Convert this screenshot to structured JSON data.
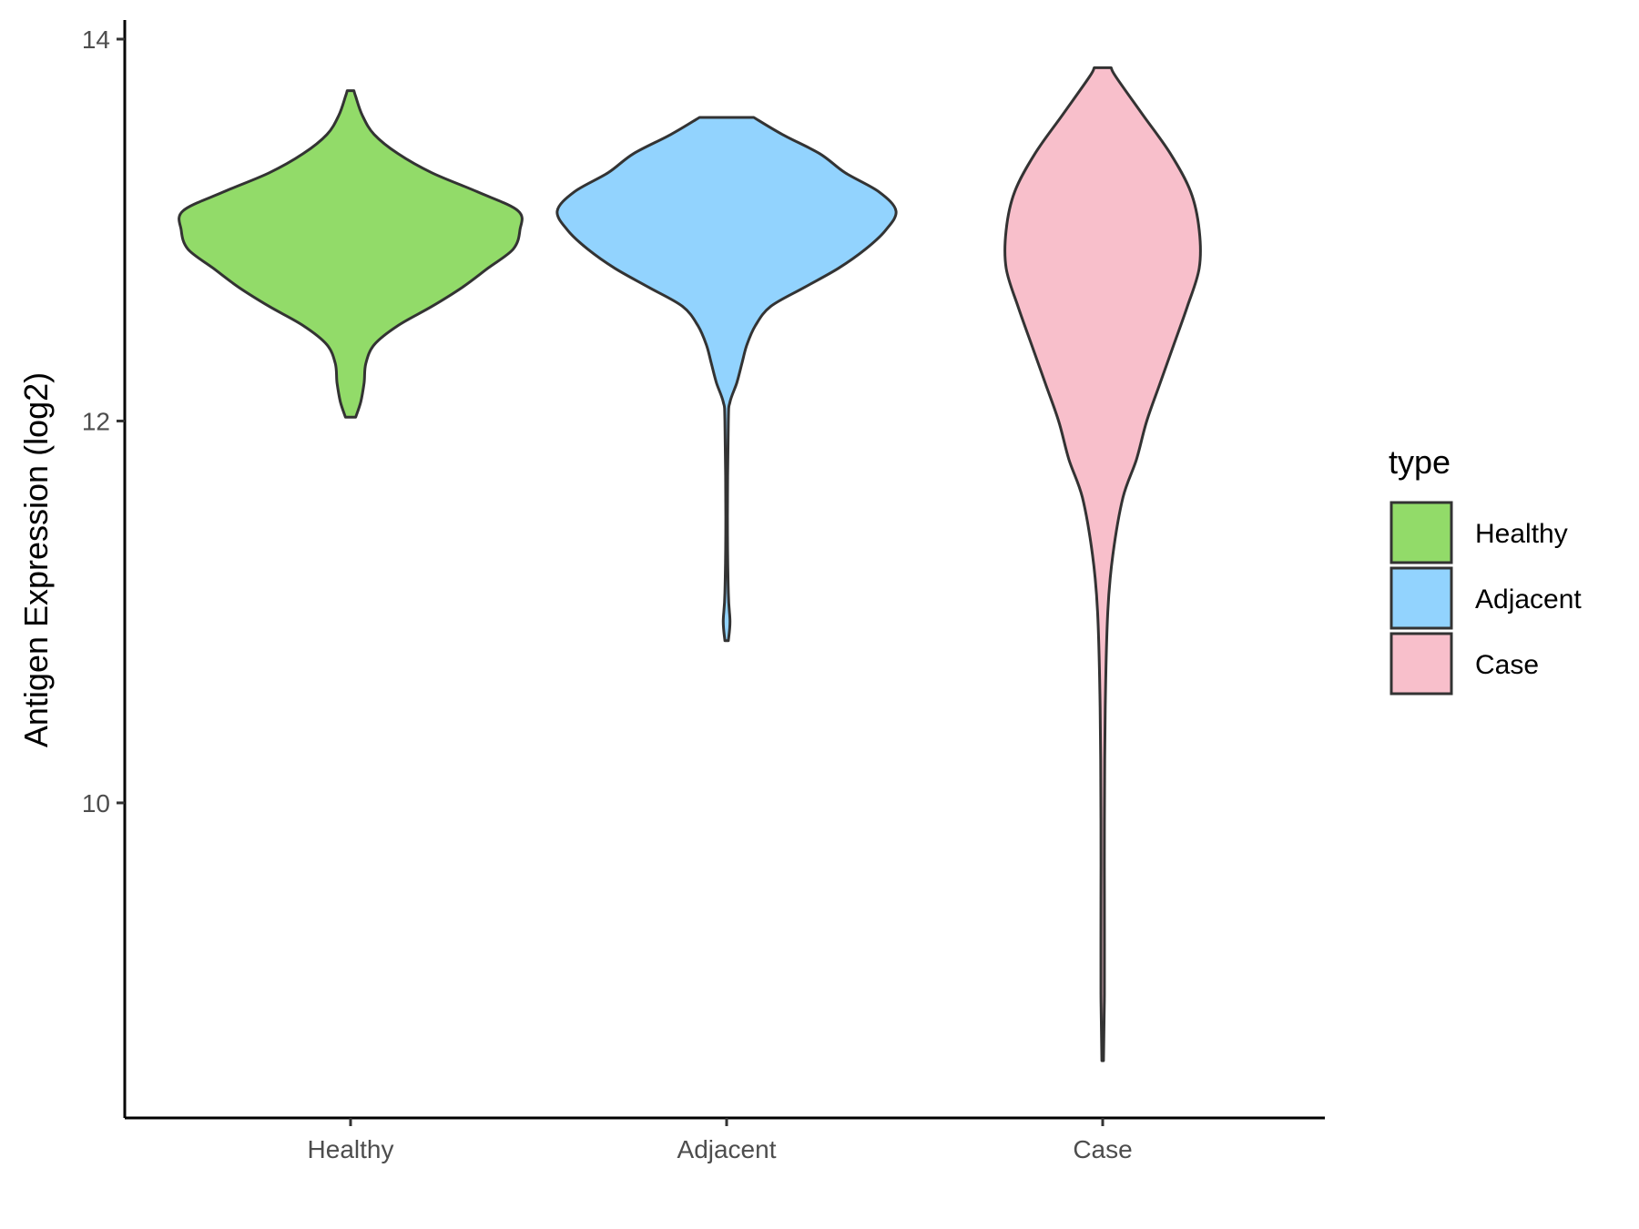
{
  "chart_data": {
    "type": "violin",
    "xlabel": "",
    "ylabel": "Antigen Expression (log2)",
    "ylim": [
      8.35,
      14.1
    ],
    "yticks": [
      10,
      12,
      14
    ],
    "categories": [
      "Healthy",
      "Adjacent",
      "Case"
    ],
    "legend": {
      "title": "type",
      "position": "right"
    },
    "grid": false,
    "series": [
      {
        "name": "Healthy",
        "color": "#92DB69",
        "min": 12.02,
        "max": 13.73,
        "profile": [
          [
            12.02,
            0.03
          ],
          [
            12.1,
            0.06
          ],
          [
            12.2,
            0.08
          ],
          [
            12.3,
            0.09
          ],
          [
            12.4,
            0.14
          ],
          [
            12.5,
            0.28
          ],
          [
            12.6,
            0.48
          ],
          [
            12.7,
            0.66
          ],
          [
            12.8,
            0.81
          ],
          [
            12.9,
            0.96
          ],
          [
            13.0,
            1.0
          ],
          [
            13.1,
            0.99
          ],
          [
            13.2,
            0.75
          ],
          [
            13.3,
            0.48
          ],
          [
            13.4,
            0.28
          ],
          [
            13.5,
            0.14
          ],
          [
            13.6,
            0.07
          ],
          [
            13.7,
            0.03
          ],
          [
            13.73,
            0.02
          ]
        ]
      },
      {
        "name": "Adjacent",
        "color": "#92D3FE",
        "min": 10.85,
        "max": 13.59,
        "profile": [
          [
            10.85,
            0.01
          ],
          [
            10.95,
            0.02
          ],
          [
            11.1,
            0.01
          ],
          [
            11.5,
            0.005
          ],
          [
            12.0,
            0.01
          ],
          [
            12.1,
            0.02
          ],
          [
            12.2,
            0.06
          ],
          [
            12.3,
            0.09
          ],
          [
            12.4,
            0.12
          ],
          [
            12.5,
            0.17
          ],
          [
            12.6,
            0.26
          ],
          [
            12.7,
            0.46
          ],
          [
            12.8,
            0.66
          ],
          [
            12.9,
            0.82
          ],
          [
            13.0,
            0.94
          ],
          [
            13.1,
            1.0
          ],
          [
            13.2,
            0.9
          ],
          [
            13.3,
            0.7
          ],
          [
            13.4,
            0.55
          ],
          [
            13.5,
            0.33
          ],
          [
            13.59,
            0.16
          ]
        ]
      },
      {
        "name": "Case",
        "color": "#F8BFCB",
        "min": 8.65,
        "max": 13.85,
        "profile": [
          [
            8.65,
            0.005
          ],
          [
            9.0,
            0.01
          ],
          [
            9.5,
            0.01
          ],
          [
            9.9,
            0.01
          ],
          [
            10.5,
            0.015
          ],
          [
            11.0,
            0.03
          ],
          [
            11.3,
            0.06
          ],
          [
            11.6,
            0.12
          ],
          [
            11.8,
            0.2
          ],
          [
            12.0,
            0.26
          ],
          [
            12.2,
            0.34
          ],
          [
            12.4,
            0.42
          ],
          [
            12.6,
            0.5
          ],
          [
            12.8,
            0.57
          ],
          [
            13.0,
            0.57
          ],
          [
            13.2,
            0.52
          ],
          [
            13.4,
            0.4
          ],
          [
            13.6,
            0.24
          ],
          [
            13.8,
            0.08
          ],
          [
            13.85,
            0.05
          ]
        ]
      }
    ]
  }
}
